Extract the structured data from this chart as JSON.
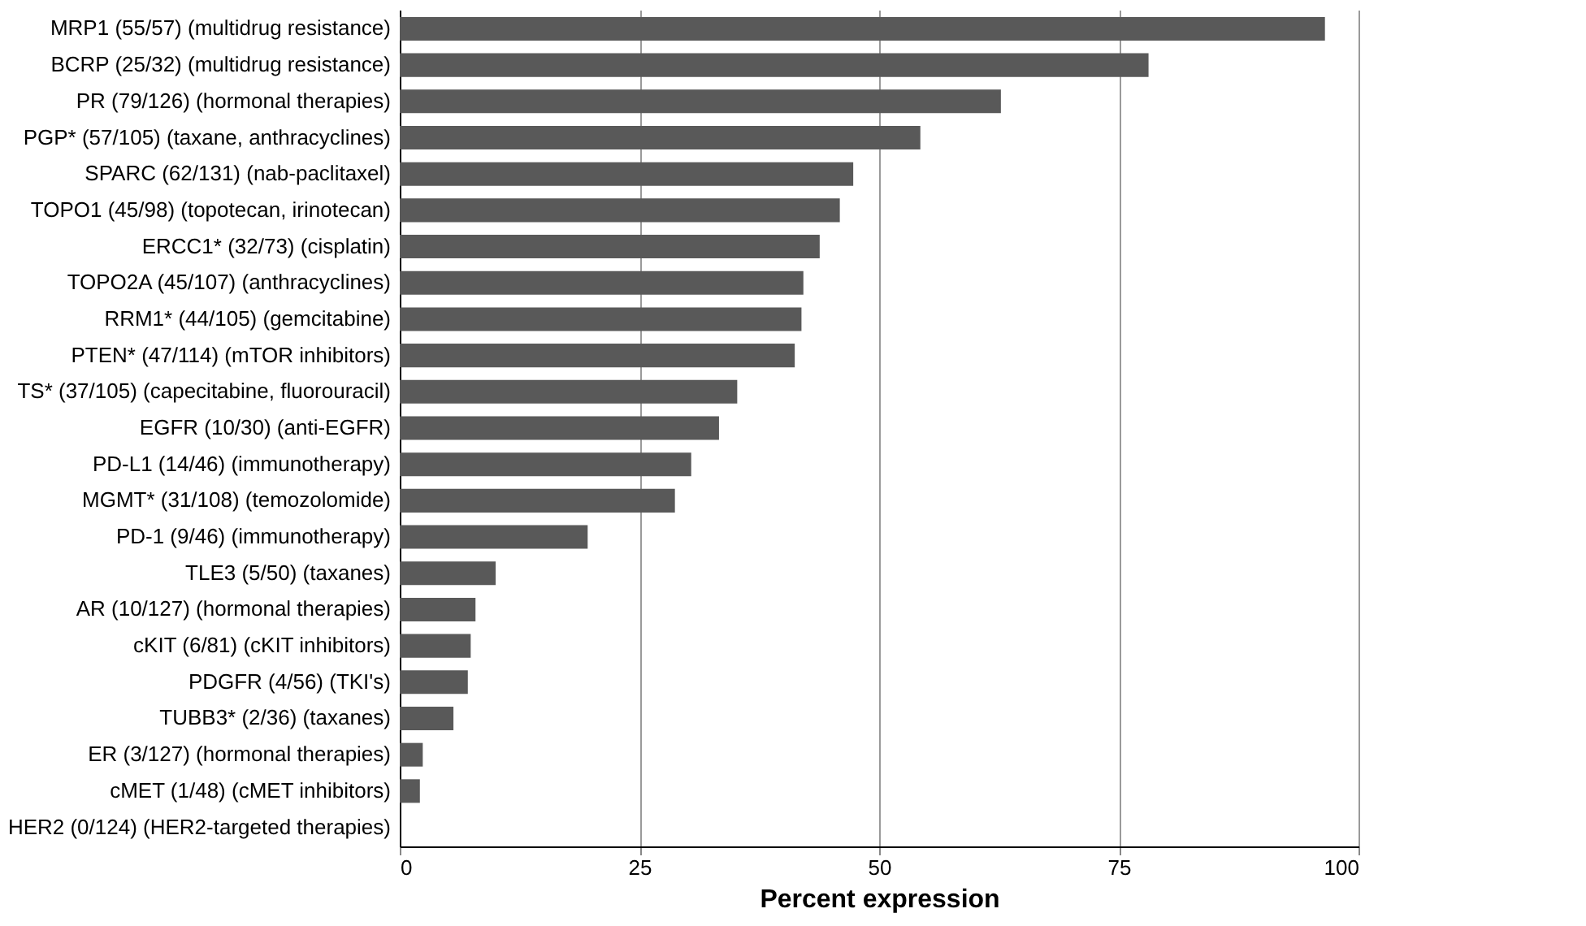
{
  "chart_data": {
    "type": "bar",
    "orientation": "horizontal",
    "xlabel": "Percent expression",
    "categories": [
      "MRP1 (55/57) (multidrug resistance)",
      "BCRP (25/32) (multidrug resistance)",
      "PR (79/126) (hormonal therapies)",
      "PGP* (57/105) (taxane, anthracyclines)",
      "SPARC (62/131) (nab-paclitaxel)",
      "TOPO1 (45/98) (topotecan, irinotecan)",
      "ERCC1* (32/73) (cisplatin)",
      "TOPO2A (45/107) (anthracyclines)",
      "RRM1* (44/105) (gemcitabine)",
      "PTEN* (47/114) (mTOR inhibitors)",
      "TS* (37/105) (capecitabine, fluorouracil)",
      "EGFR (10/30) (anti-EGFR)",
      "PD-L1 (14/46) (immunotherapy)",
      "MGMT* (31/108) (temozolomide)",
      "PD-1 (9/46) (immunotherapy)",
      "TLE3 (5/50) (taxanes)",
      "AR (10/127) (hormonal therapies)",
      "cKIT (6/81) (cKIT inhibitors)",
      "PDGFR (4/56) (TKI's)",
      "TUBB3* (2/36) (taxanes)",
      "ER (3/127) (hormonal therapies)",
      "cMET (1/48) (cMET inhibitors)",
      "HER2 (0/124) (HER2-targeted therapies)"
    ],
    "values": [
      96.5,
      78.1,
      62.7,
      54.3,
      47.3,
      45.9,
      43.8,
      42.1,
      41.9,
      41.2,
      35.2,
      33.3,
      30.4,
      28.7,
      19.6,
      10,
      7.9,
      7.4,
      7.1,
      5.6,
      2.4,
      2.1,
      0
    ],
    "color": "#595959",
    "xlim": [
      0,
      100
    ],
    "xticks": [
      0,
      25,
      50,
      75,
      100
    ],
    "grid": "x"
  }
}
